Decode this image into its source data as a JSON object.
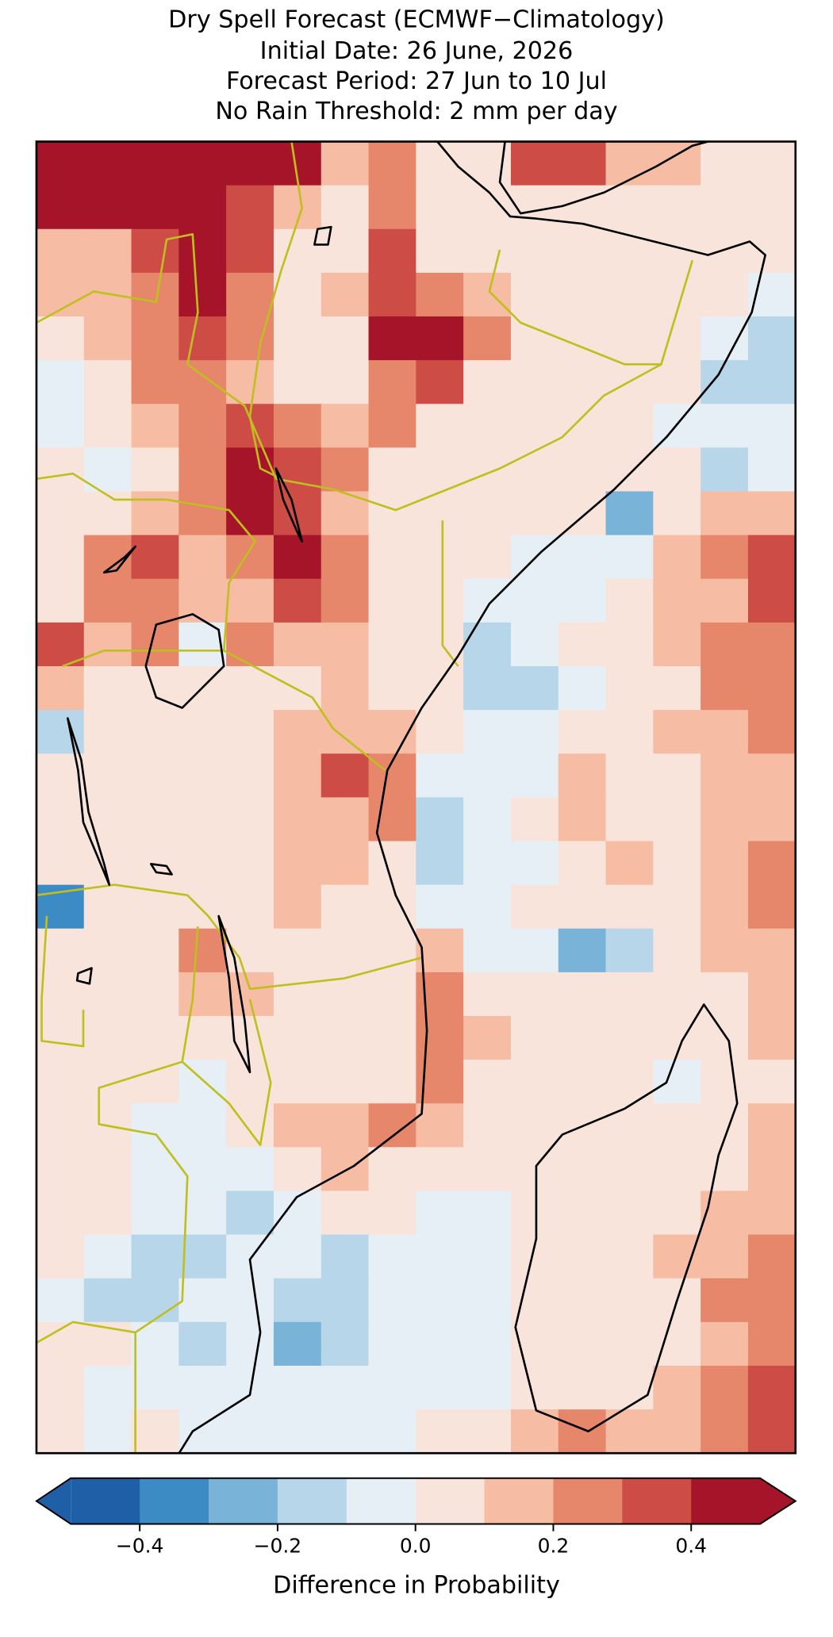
{
  "chart_data": {
    "type": "gridmap",
    "title": "Dry Spell Forecast (ECMWF−Climatology)",
    "subtitles": [
      "Initial Date: 26 June, 2026",
      "Forecast Period: 27 Jun to 10 Jul",
      "No Rain Threshold: 2 mm per day"
    ],
    "colorbar_label": "Difference in Probability",
    "clim": [
      -0.5,
      0.5
    ],
    "colors": [
      "#1f5fa8",
      "#3d8bc4",
      "#7ab3d8",
      "#b7d6e9",
      "#e5eff5",
      "#f9e4dc",
      "#f6bda4",
      "#e6866b",
      "#cd4c45",
      "#a51428"
    ],
    "ticks": [
      {
        "value": -0.4,
        "label": "−0.4"
      },
      {
        "value": -0.2,
        "label": "−0.2"
      },
      {
        "value": 0,
        "label": "0.0"
      },
      0.2,
      0.4
    ],
    "values": [
      [
        0.45,
        0.45,
        0.45,
        0.45,
        0.45,
        0.45,
        0.15,
        0.2,
        0.05,
        0.05,
        0.3,
        0.3,
        0.15,
        0.1,
        0.05,
        0.05
      ],
      [
        0.45,
        0.45,
        0.45,
        0.45,
        0.35,
        0.15,
        0.05,
        0.2,
        0.05,
        0.05,
        0.05,
        0.05,
        0.05,
        0.05,
        0.05,
        0.05
      ],
      [
        0.15,
        0.1,
        0.35,
        0.45,
        0.3,
        0.05,
        0.05,
        0.35,
        0.05,
        0.05,
        0.05,
        0.05,
        0.05,
        0.05,
        0.05,
        0.05
      ],
      [
        0.1,
        0.15,
        0.2,
        0.45,
        0.25,
        0.05,
        0.15,
        0.35,
        0.25,
        0.15,
        0.05,
        0.05,
        0.05,
        0.05,
        0.05,
        -0.05
      ],
      [
        0.05,
        0.1,
        0.2,
        0.3,
        0.25,
        0.05,
        0.05,
        0.4,
        0.45,
        0.2,
        0.05,
        0.05,
        0.05,
        0.05,
        -0.05,
        -0.15
      ],
      [
        -0.05,
        0.05,
        0.25,
        0.25,
        0.1,
        0.05,
        0.05,
        0.25,
        0.35,
        0.05,
        0.05,
        0.05,
        0.05,
        0.05,
        -0.15,
        -0.15
      ],
      [
        -0.05,
        0.05,
        0.1,
        0.25,
        0.35,
        0.2,
        0.15,
        0.2,
        0.05,
        0.05,
        0.05,
        0.05,
        0.05,
        -0.05,
        -0.05,
        -0.05
      ],
      [
        0.05,
        -0.05,
        0.05,
        0.2,
        0.4,
        0.35,
        0.2,
        0.05,
        0.05,
        0.05,
        0.05,
        0.05,
        0.05,
        0.05,
        -0.15,
        -0.05
      ],
      [
        0.05,
        0.05,
        0.1,
        0.2,
        0.4,
        0.35,
        0.15,
        0.05,
        0.05,
        0.05,
        0.05,
        0.05,
        -0.25,
        0.05,
        0.15,
        0.15
      ],
      [
        0.05,
        0.2,
        0.3,
        0.15,
        0.2,
        0.4,
        0.2,
        0.05,
        0.05,
        0.05,
        -0.05,
        -0.05,
        -0.05,
        0.1,
        0.2,
        0.3
      ],
      [
        0.05,
        0.25,
        0.25,
        0.15,
        0.15,
        0.3,
        0.2,
        0.05,
        0.05,
        -0.05,
        -0.05,
        -0.05,
        0.05,
        0.15,
        0.15,
        0.3
      ],
      [
        0.3,
        0.15,
        0.2,
        -0.05,
        0.25,
        0.1,
        0.15,
        0.05,
        0.05,
        -0.15,
        -0.05,
        0.05,
        0.05,
        0.15,
        0.2,
        0.25
      ],
      [
        0.15,
        0.05,
        0.05,
        0.05,
        0.05,
        0.05,
        0.15,
        0.05,
        0.05,
        -0.15,
        -0.15,
        -0.05,
        0.05,
        0.05,
        0.2,
        0.25
      ],
      [
        -0.15,
        0.05,
        0.05,
        0.05,
        0.05,
        0.15,
        0.15,
        0.15,
        0.05,
        -0.05,
        -0.1,
        0.05,
        0.05,
        0.1,
        0.15,
        0.2
      ],
      [
        0.05,
        0.05,
        0.05,
        0.05,
        0.05,
        0.1,
        0.3,
        0.2,
        -0.05,
        -0.05,
        -0.05,
        0.15,
        0.05,
        0.05,
        0.15,
        0.15
      ],
      [
        0.05,
        0.05,
        0.05,
        0.05,
        0.05,
        0.1,
        0.15,
        0.2,
        -0.15,
        -0.05,
        0.05,
        0.1,
        0.05,
        0.05,
        0.15,
        0.15
      ],
      [
        0.05,
        0.05,
        0.05,
        0.05,
        0.05,
        0.15,
        0.15,
        0.05,
        -0.15,
        -0.05,
        -0.05,
        0.05,
        0.1,
        0.05,
        0.15,
        0.25
      ],
      [
        -0.35,
        0.05,
        0.05,
        0.05,
        0.05,
        0.1,
        0.05,
        0.05,
        -0.05,
        -0.05,
        0.05,
        0.05,
        0.05,
        0.05,
        0.15,
        0.2
      ],
      [
        0.05,
        0.05,
        0.05,
        0.2,
        0.05,
        0.05,
        0.05,
        0.05,
        0.15,
        -0.05,
        -0.05,
        -0.25,
        -0.15,
        0.05,
        0.1,
        0.15
      ],
      [
        0.05,
        0.05,
        0.05,
        0.1,
        0.1,
        0.05,
        0.05,
        0.05,
        0.2,
        0.05,
        0.05,
        0.05,
        0.05,
        0.05,
        0.05,
        0.1
      ],
      [
        0.05,
        0.05,
        0.05,
        0.05,
        0.05,
        0.05,
        0.05,
        0.05,
        0.2,
        0.1,
        0.05,
        0.05,
        0.05,
        0.05,
        0.05,
        0.1
      ],
      [
        0.05,
        0.05,
        0.05,
        -0.05,
        0.05,
        0.05,
        0.05,
        0.05,
        0.25,
        0.05,
        0.05,
        0.05,
        0.05,
        -0.05,
        0.05,
        0.05
      ],
      [
        0.05,
        0.05,
        -0.05,
        -0.05,
        0.05,
        0.1,
        0.15,
        0.2,
        0.15,
        0.05,
        0.05,
        0.05,
        0.05,
        0.05,
        0.05,
        0.1
      ],
      [
        0.05,
        0.05,
        -0.05,
        -0.05,
        -0.05,
        0.05,
        0.1,
        0.05,
        0.05,
        0.05,
        0.05,
        0.05,
        0.05,
        0.05,
        0.05,
        0.1
      ],
      [
        0.05,
        0.05,
        -0.05,
        -0.05,
        -0.15,
        -0.05,
        0.05,
        0.05,
        -0.05,
        -0.05,
        0.05,
        0.05,
        0.05,
        0.05,
        0.1,
        0.15
      ],
      [
        0.05,
        -0.05,
        -0.15,
        -0.15,
        -0.05,
        -0.05,
        -0.15,
        -0.05,
        -0.05,
        -0.05,
        0.05,
        0.05,
        0.05,
        0.1,
        0.15,
        0.25
      ],
      [
        -0.05,
        -0.15,
        -0.15,
        -0.05,
        -0.05,
        -0.15,
        -0.15,
        -0.05,
        -0.05,
        -0.05,
        0.05,
        0.05,
        0.05,
        0.05,
        0.2,
        0.2
      ],
      [
        0.05,
        0.05,
        -0.05,
        -0.15,
        -0.05,
        -0.25,
        -0.15,
        -0.05,
        -0.05,
        -0.05,
        0.05,
        0.05,
        0.05,
        0.05,
        0.15,
        0.2
      ],
      [
        0.05,
        -0.05,
        -0.05,
        -0.05,
        -0.05,
        -0.05,
        -0.05,
        -0.05,
        -0.05,
        -0.05,
        0.05,
        0.05,
        0.05,
        0.15,
        0.25,
        0.35
      ],
      [
        0.05,
        -0.05,
        0.05,
        -0.05,
        -0.05,
        -0.05,
        -0.05,
        -0.05,
        0.05,
        0.05,
        0.1,
        0.2,
        0.15,
        0.15,
        0.25,
        0.3
      ]
    ]
  }
}
